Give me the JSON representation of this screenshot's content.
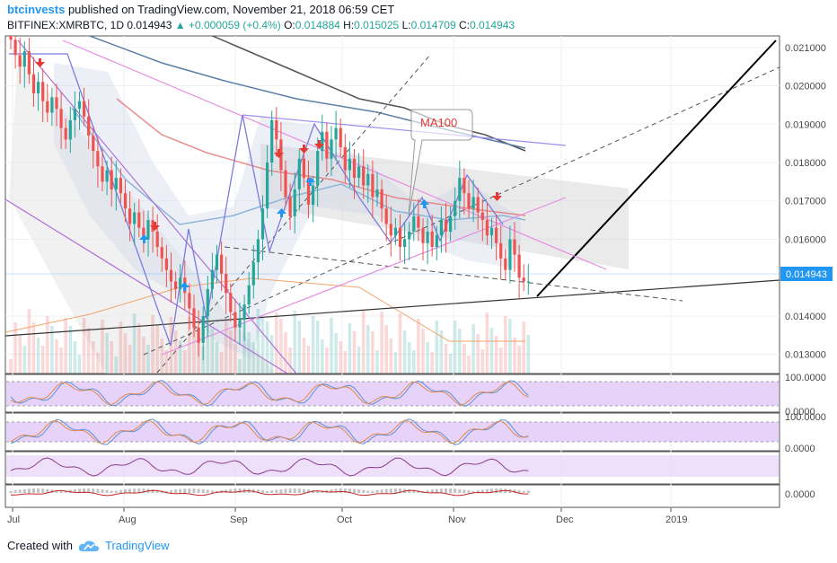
{
  "header": {
    "author": "btcinvests",
    "published_text": "published on TradingView.com, November 21, 2018 06:59 CET"
  },
  "symbol_line": {
    "symbol": "BITFINEX:XMRBTC, 1D",
    "last": "0.014943",
    "change": "▲ +0.000059 (+0.4%)",
    "open_label": "O:",
    "open": "0.014884",
    "high_label": "H:",
    "high": "0.015025",
    "low_label": "L:",
    "low": "0.014709",
    "close_label": "C:",
    "close": "0.014943"
  },
  "footer": {
    "created_with": "Created with",
    "brand": "TradingView",
    "logo_icon": "tradingview-cloud-icon"
  },
  "colors": {
    "up": "#26a69a",
    "down": "#ef5350",
    "price_tag": "#2196f3",
    "oscillator_band": "#e1c8f7",
    "ma100": "#e53935"
  },
  "chart_data": {
    "type": "candlestick",
    "symbol": "BITFINEX:XMRBTC",
    "interval": "1D",
    "x_tick_labels": [
      "Jul",
      "Aug",
      "Sep",
      "Oct",
      "Nov",
      "Dec",
      "2019"
    ],
    "y_tick_labels": [
      "0.021000",
      "0.020000",
      "0.019000",
      "0.018000",
      "0.017000",
      "0.016000",
      "0.014000",
      "0.013000"
    ],
    "ylim": [
      0.0125,
      0.0213
    ],
    "current_price_label": "0.014943",
    "annotation": "MA100",
    "close_series": {
      "start_date": "2018-07-01",
      "values": [
        0.0212,
        0.0208,
        0.0205,
        0.0209,
        0.0203,
        0.0198,
        0.0201,
        0.0196,
        0.0193,
        0.0197,
        0.0194,
        0.0189,
        0.0186,
        0.0191,
        0.0194,
        0.0196,
        0.0192,
        0.0187,
        0.0183,
        0.0179,
        0.0175,
        0.0178,
        0.0173,
        0.0176,
        0.0172,
        0.0168,
        0.0164,
        0.0167,
        0.0163,
        0.016,
        0.0165,
        0.0162,
        0.0158,
        0.0155,
        0.0152,
        0.0149,
        0.0147,
        0.015,
        0.0146,
        0.0142,
        0.0137,
        0.0133,
        0.014,
        0.0147,
        0.0152,
        0.0156,
        0.0151,
        0.0146,
        0.0141,
        0.0137,
        0.0139,
        0.0143,
        0.0148,
        0.0154,
        0.016,
        0.0168,
        0.018,
        0.0191,
        0.0186,
        0.0178,
        0.0171,
        0.0166,
        0.0173,
        0.0181,
        0.0176,
        0.0169,
        0.0174,
        0.0183,
        0.0188,
        0.0181,
        0.0186,
        0.0189,
        0.0184,
        0.0178,
        0.0181,
        0.0176,
        0.0179,
        0.0174,
        0.0177,
        0.0171,
        0.0173,
        0.0168,
        0.0164,
        0.0161,
        0.0163,
        0.0158,
        0.016,
        0.0162,
        0.0166,
        0.0163,
        0.0159,
        0.0162,
        0.0158,
        0.0161,
        0.0165,
        0.0162,
        0.0166,
        0.017,
        0.0176,
        0.0172,
        0.0168,
        0.0171,
        0.0167,
        0.0165,
        0.0161,
        0.0163,
        0.0159,
        0.0155,
        0.0152,
        0.016,
        0.0156,
        0.015,
        0.0149,
        0.0149
      ]
    },
    "oscillator_ranges": [
      {
        "name": "",
        "levels": [
          "100.0000",
          "0.0000"
        ]
      },
      {
        "name": "",
        "levels": [
          "100.0000",
          "0.0000"
        ]
      },
      {
        "name": "",
        "levels": []
      },
      {
        "name": "",
        "levels": [
          "0.0000"
        ]
      }
    ],
    "grid": true
  }
}
